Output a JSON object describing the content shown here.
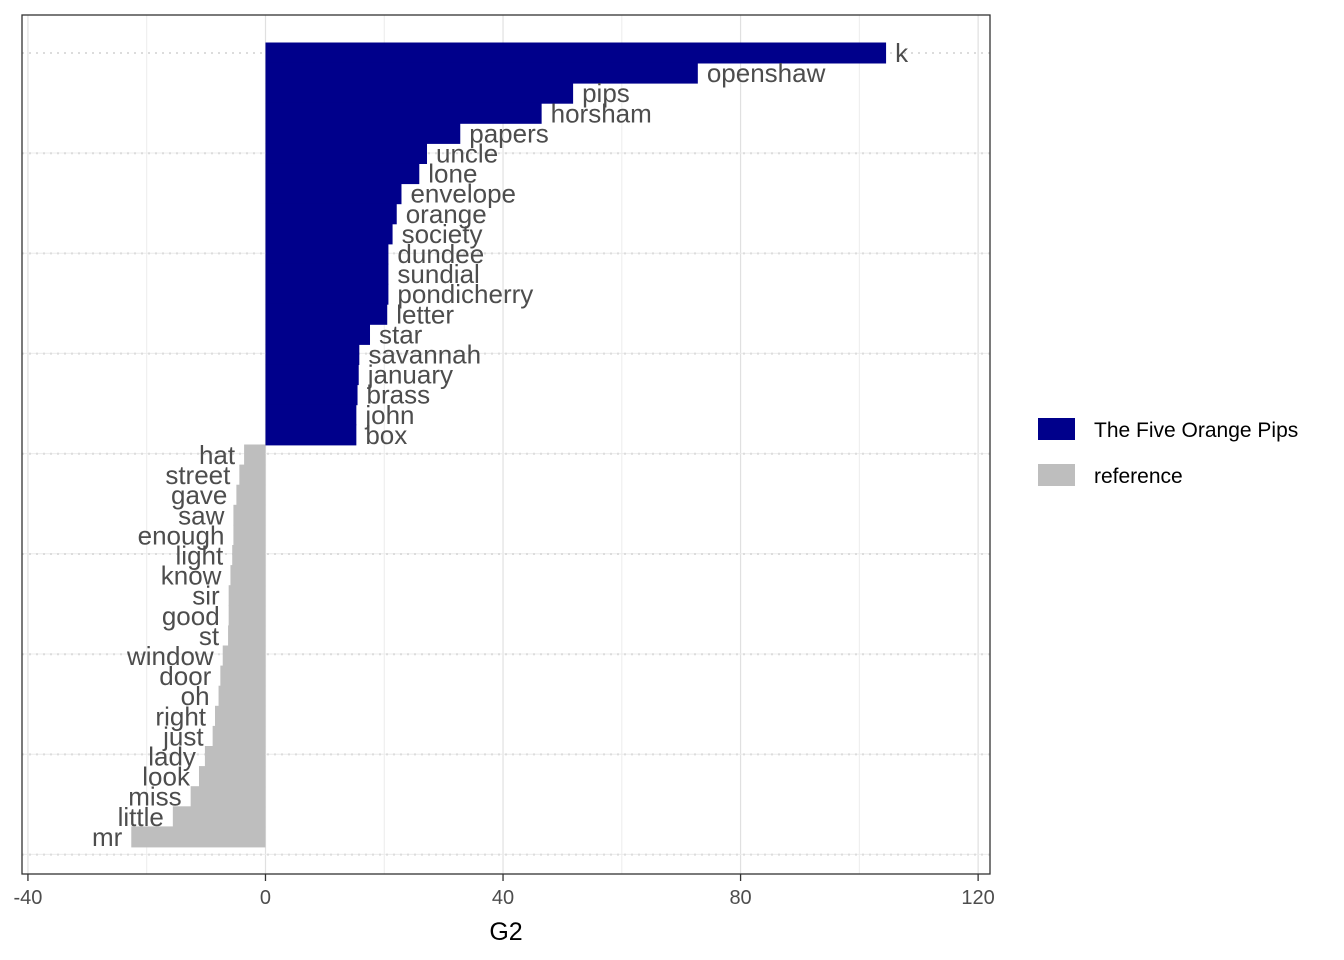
{
  "chart_data": {
    "type": "bar",
    "orientation": "horizontal",
    "xlabel": "G2",
    "ylabel": "",
    "title": "",
    "xlim": [
      -41,
      122
    ],
    "x_ticks": [
      -40,
      0,
      40,
      80,
      120
    ],
    "x_tick_labels": [
      "-40",
      "0",
      "40",
      "80",
      "120"
    ],
    "grid": true,
    "legend_position": "right",
    "series": [
      {
        "name": "The Five Orange Pips",
        "color": "#00008B",
        "labels": [
          "k",
          "openshaw",
          "pips",
          "horsham",
          "papers",
          "uncle",
          "lone",
          "envelope",
          "orange",
          "society",
          "dundee",
          "sundial",
          "pondicherry",
          "letter",
          "star",
          "savannah",
          "january",
          "brass",
          "john",
          "box"
        ],
        "values": [
          104.5,
          72.8,
          51.8,
          46.5,
          32.8,
          27.2,
          25.9,
          22.9,
          22.1,
          21.4,
          20.7,
          20.7,
          20.7,
          20.5,
          17.6,
          15.8,
          15.7,
          15.5,
          15.3,
          15.3
        ]
      },
      {
        "name": "reference",
        "color": "#BEBEBE",
        "labels": [
          "hat",
          "street",
          "gave",
          "saw",
          "enough",
          "light",
          "know",
          "sir",
          "good",
          "st",
          "window",
          "door",
          "oh",
          "right",
          "just",
          "lady",
          "look",
          "miss",
          "little",
          "mr"
        ],
        "values": [
          -3.6,
          -4.4,
          -4.9,
          -5.4,
          -5.4,
          -5.6,
          -5.9,
          -6.2,
          -6.2,
          -6.3,
          -7.2,
          -7.6,
          -7.9,
          -8.5,
          -8.9,
          -10.2,
          -11.2,
          -12.6,
          -15.6,
          -22.6
        ]
      }
    ]
  }
}
